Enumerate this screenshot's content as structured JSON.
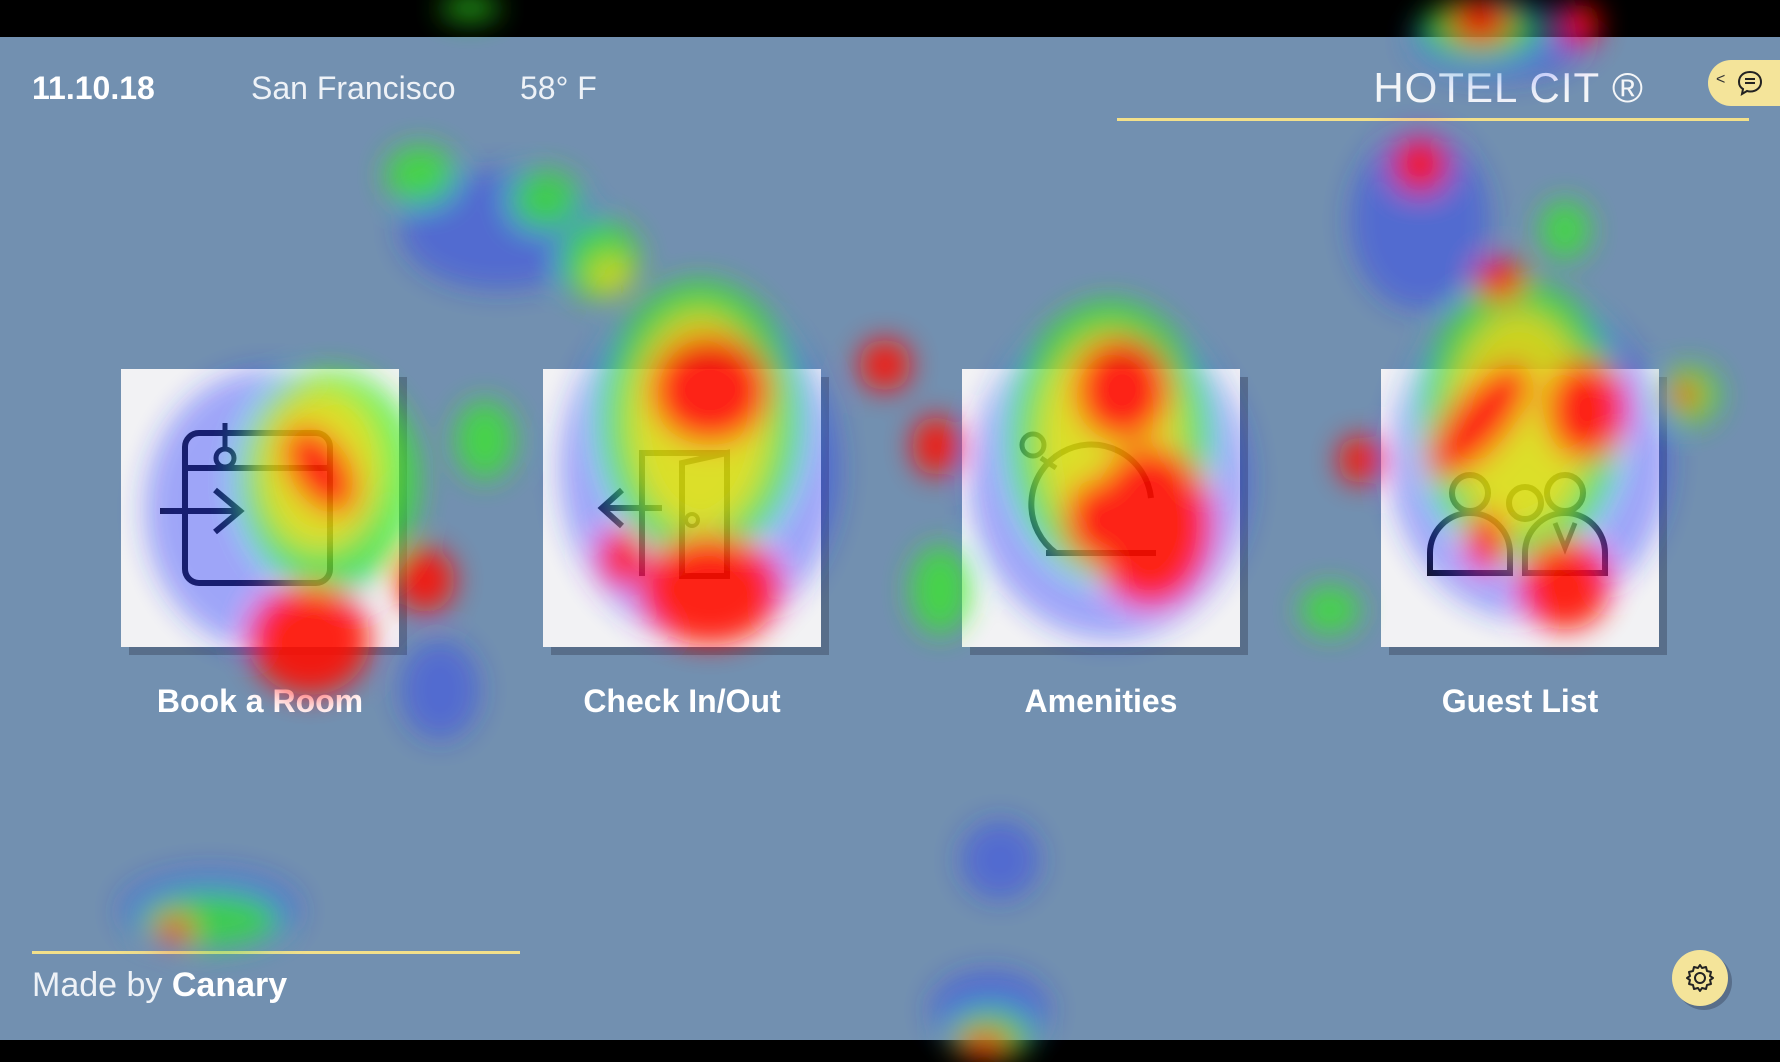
{
  "header": {
    "date": "11.10.18",
    "city": "San Francisco",
    "temperature": "58° F",
    "hotel_name": "HOTEL CIT ®"
  },
  "chat_button": {
    "chevron": "<",
    "icon": "chat-bubble-icon"
  },
  "tiles": [
    {
      "label": "Book a Room",
      "icon": "book-room-icon"
    },
    {
      "label": "Check In/Out",
      "icon": "door-icon"
    },
    {
      "label": "Amenities",
      "icon": "room-service-bell-icon"
    },
    {
      "label": "Guest List",
      "icon": "guests-icon"
    }
  ],
  "footer": {
    "made_by_prefix": "Made by ",
    "made_by_brand": "Canary"
  },
  "settings_button": {
    "icon": "gear-icon"
  },
  "colors": {
    "background": "#7290b0",
    "accent": "#f3e08a",
    "tile": "#f2f2f4",
    "heat_hot": "#ff0000",
    "heat_mid": "#00ff00",
    "heat_cool": "#0000ff"
  }
}
